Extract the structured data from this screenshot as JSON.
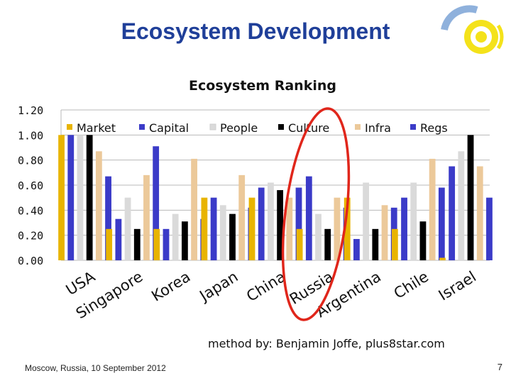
{
  "slide": {
    "title": "Ecosystem Development",
    "credit": "method by: Benjamin Joffe, plus8star.com",
    "footer": "Moscow, Russia, 10 September 2012",
    "page_number": "7"
  },
  "chart_data": {
    "type": "bar",
    "title": "Ecosystem Ranking",
    "categories": [
      "USA",
      "Singapore",
      "Korea",
      "Japan",
      "China",
      "Russia",
      "Argentina",
      "Chile",
      "Israel"
    ],
    "series": [
      {
        "name": "Market",
        "color": "#e8b400",
        "values": [
          1.0,
          0.25,
          0.25,
          0.5,
          0.5,
          0.25,
          0.5,
          0.25,
          0.02
        ]
      },
      {
        "name": "Capital",
        "color": "#3b3bc8",
        "values": [
          1.0,
          0.33,
          0.25,
          0.5,
          0.58,
          0.67,
          0.17,
          0.5,
          0.75
        ]
      },
      {
        "name": "People",
        "color": "#dadada",
        "values": [
          1.0,
          0.5,
          0.37,
          0.44,
          0.62,
          0.37,
          0.62,
          0.62,
          0.87
        ]
      },
      {
        "name": "Culture",
        "color": "#000000",
        "values": [
          1.0,
          0.25,
          0.31,
          0.37,
          0.56,
          0.25,
          0.25,
          0.31,
          1.0
        ]
      },
      {
        "name": "Infra",
        "color": "#ecc99a",
        "values": [
          0.87,
          0.68,
          0.81,
          0.68,
          0.5,
          0.5,
          0.44,
          0.81,
          0.75
        ]
      },
      {
        "name": "Regs",
        "color": "#3b3bc8",
        "values": [
          0.67,
          0.91,
          0.33,
          0.42,
          0.58,
          0.42,
          0.42,
          0.58,
          0.5
        ]
      }
    ],
    "ylim": [
      0,
      1.2
    ],
    "yticks": [
      "0.00",
      "0.20",
      "0.40",
      "0.60",
      "0.80",
      "1.00",
      "1.20"
    ],
    "legend_position": "top",
    "annotation": "red ellipse highlighting Russia"
  }
}
